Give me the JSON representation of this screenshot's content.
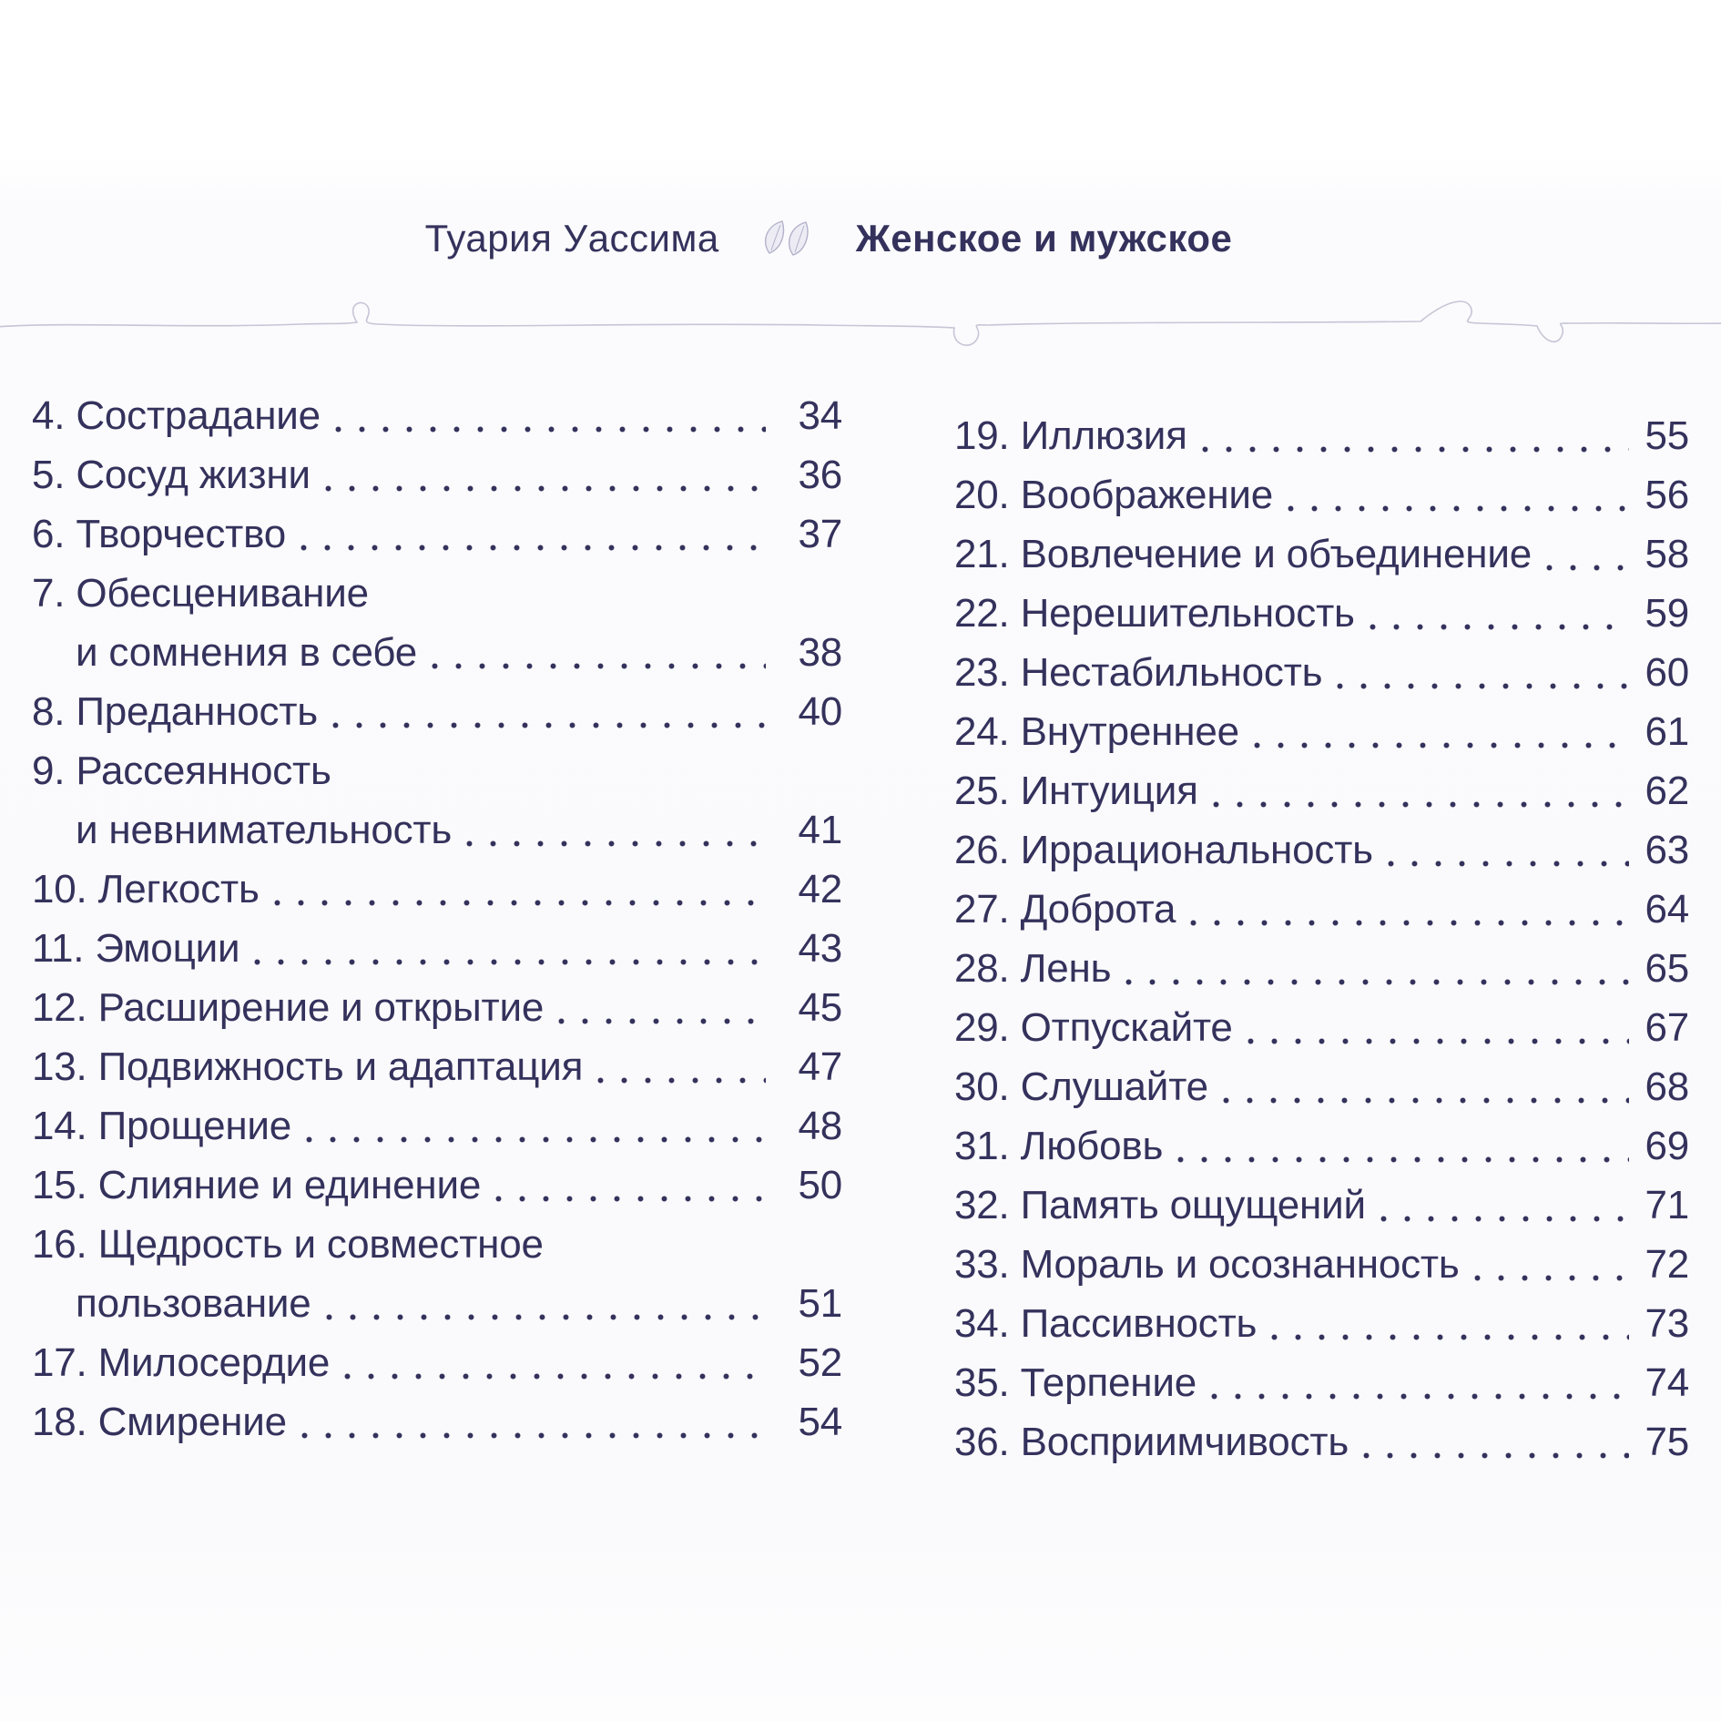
{
  "page": {
    "ink_color": "#34325c",
    "squiggle_color": "#c6c5d6",
    "background_color": "#fbfbfd"
  },
  "header": {
    "author": "Туария Уассима",
    "title": "Женское и мужское",
    "divider_icon": "two-leaves-icon"
  },
  "toc": {
    "left_column": [
      {
        "text": "4. Сострадание",
        "page": "34"
      },
      {
        "text": "5. Сосуд жизни",
        "page": "36"
      },
      {
        "text": "6. Творчество",
        "page": "37"
      },
      {
        "text": "7. Обесценивание",
        "text2": "и сомнения в себе",
        "page": "38"
      },
      {
        "text": "8. Преданность",
        "page": "40"
      },
      {
        "text": "9. Рассеянность",
        "text2": "и невнимательность",
        "page": "41"
      },
      {
        "text": "10. Легкость",
        "page": "42"
      },
      {
        "text": "11. Эмоции",
        "page": "43"
      },
      {
        "text": "12. Расширение и открытие",
        "page": "45"
      },
      {
        "text": "13. Подвижность и адаптация",
        "page": "47"
      },
      {
        "text": "14. Прощение",
        "page": "48"
      },
      {
        "text": "15. Слияние и единение",
        "page": "50"
      },
      {
        "text": "16. Щедрость и совместное",
        "text2": "пользование",
        "page": "51"
      },
      {
        "text": "17. Милосердие",
        "page": "52"
      },
      {
        "text": "18. Смирение",
        "page": "54"
      }
    ],
    "right_column": [
      {
        "text": "19. Иллюзия",
        "page": "55"
      },
      {
        "text": "20. Воображение",
        "page": "56"
      },
      {
        "text": "21. Вовлечение и объединение",
        "page": "58"
      },
      {
        "text": "22. Нерешительность",
        "page": "59"
      },
      {
        "text": "23. Нестабильность",
        "page": "60"
      },
      {
        "text": "24. Внутреннее",
        "page": "61"
      },
      {
        "text": "25. Интуиция",
        "page": "62"
      },
      {
        "text": "26. Иррациональность",
        "page": "63"
      },
      {
        "text": "27. Доброта",
        "page": "64"
      },
      {
        "text": "28. Лень",
        "page": "65"
      },
      {
        "text": "29. Отпускайте",
        "page": "67"
      },
      {
        "text": "30. Слушайте",
        "page": "68"
      },
      {
        "text": "31. Любовь",
        "page": "69"
      },
      {
        "text": "32. Память ощущений",
        "page": "71"
      },
      {
        "text": "33. Мораль и осознанность",
        "page": "72"
      },
      {
        "text": "34. Пассивность",
        "page": "73"
      },
      {
        "text": "35. Терпение",
        "page": "74"
      },
      {
        "text": "36. Восприимчивость",
        "page": "75"
      }
    ]
  }
}
